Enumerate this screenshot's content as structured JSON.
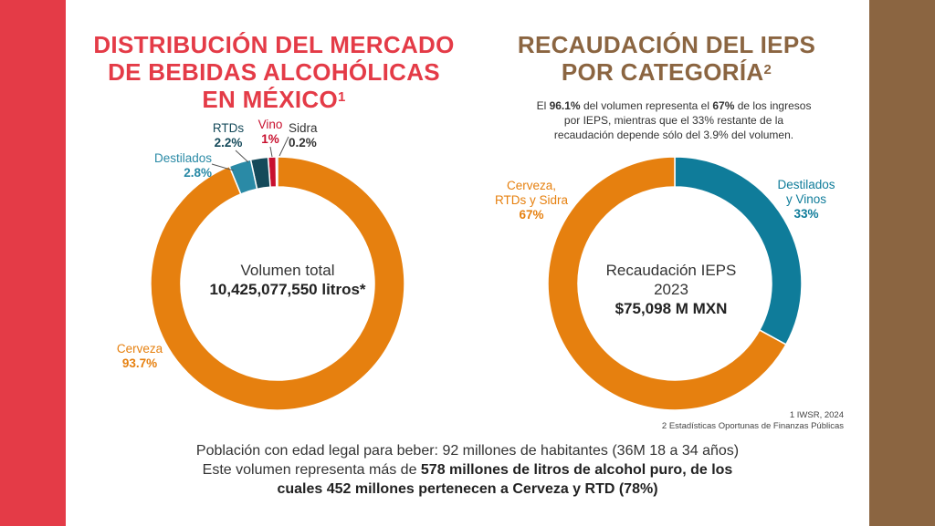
{
  "colors": {
    "left_bar": "#E43B47",
    "right_bar": "#8B6541",
    "red_title": "#E43B47",
    "brown_title": "#8B6541",
    "cerveza": "#E6800F",
    "destilados": "#2A8AA6",
    "rtds": "#154A5A",
    "vino": "#C8102E",
    "sidra": "#8C8C8C",
    "destilados_vinos": "#0F7C9A"
  },
  "left_title": {
    "line1": "DISTRIBUCIÓN DEL MERCADO",
    "line2": "DE BEBIDAS ALCOHÓLICAS",
    "line3": "EN MÉXICO",
    "sup": "1"
  },
  "right_title": {
    "line1": "RECAUDACIÓN DEL IEPS",
    "line2": "POR CATEGORÍA",
    "sup": "2"
  },
  "note": {
    "line1": "El 96.1% del volumen representa el 67% de los ingresos",
    "line2": "por IEPS, mientras que el 33% restante de la",
    "line3": "recaudación depende sólo del 3.9% del volumen."
  },
  "left_center": {
    "label": "Volumen total",
    "value": "10,425,077,550 litros*"
  },
  "right_center": {
    "line1": "Recaudación IEPS",
    "line2": "2023",
    "value": "$75,098 M MXN"
  },
  "sources": {
    "line1": "1 IWSR, 2024",
    "line2": "2 Estadísticas Oportunas de Finanzas Públicas"
  },
  "bottom": {
    "line1": "Población con edad legal para beber: 92 millones de habitantes (36M 18 a 34 años)",
    "line2_a": "Este volumen representa más de ",
    "line2_b": "578 millones de litros de alcohol puro, de los",
    "line3": "cuales 452 millones pertenecen a Cerveza y RTD (78%)"
  },
  "chart_data": [
    {
      "type": "pie",
      "donut": true,
      "categories": [
        "Cerveza",
        "Destilados",
        "RTDs",
        "Vino",
        "Sidra"
      ],
      "values": [
        93.7,
        2.8,
        2.2,
        1,
        0.2
      ],
      "value_labels": [
        "93.7%",
        "2.8%",
        "2.2%",
        "1%",
        "0.2%"
      ],
      "center_label": "Volumen total",
      "center_value": "10,425,077,550 litros*"
    },
    {
      "type": "pie",
      "donut": true,
      "categories": [
        "Destilados y Vinos",
        "Cerveza, RTDs y Sidra"
      ],
      "category_lines": [
        [
          "Destilados",
          "y Vinos"
        ],
        [
          "Cerveza,",
          "RTDs y Sidra"
        ]
      ],
      "values": [
        33,
        67
      ],
      "value_labels": [
        "33%",
        "67%"
      ],
      "center_label": "Recaudación IEPS 2023",
      "center_value": "$75,098 M MXN"
    }
  ]
}
